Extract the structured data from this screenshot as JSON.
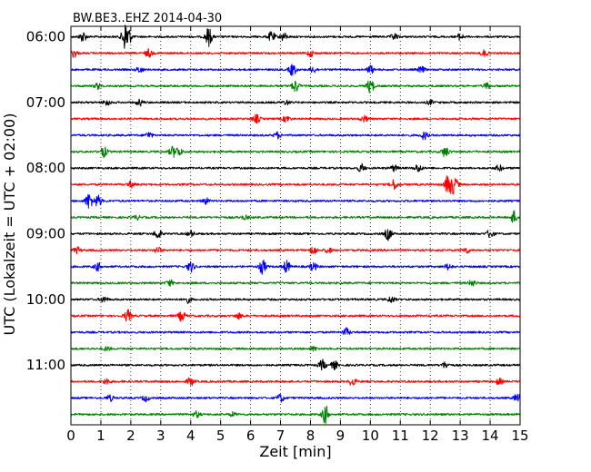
{
  "chart_data": {
    "type": "line",
    "title": "BW.BE3..EHZ 2014-04-30",
    "xlabel": "Zeit  [min]",
    "ylabel": "UTC (Lokalzeit = UTC + 02:00)",
    "xlim": [
      0,
      15
    ],
    "x_ticks": [
      "0",
      "1",
      "2",
      "3",
      "4",
      "5",
      "6",
      "7",
      "8",
      "9",
      "10",
      "11",
      "12",
      "13",
      "14",
      "15"
    ],
    "y_tick_labels": [
      "06:00",
      "07:00",
      "08:00",
      "09:00",
      "10:00",
      "11:00"
    ],
    "grid": "vertical dotted",
    "trace_colors": [
      "#000000",
      "#ff0000",
      "#0000ff",
      "#008000"
    ],
    "traces": [
      {
        "start": "06:00",
        "color": "#000000",
        "events": [
          [
            0.4,
            0.5
          ],
          [
            1.8,
            1.0
          ],
          [
            1.9,
            0.9
          ],
          [
            4.6,
            0.9
          ],
          [
            6.7,
            0.5
          ],
          [
            7.1,
            0.4
          ],
          [
            10.8,
            0.3
          ],
          [
            13.0,
            0.3
          ]
        ]
      },
      {
        "start": "06:15",
        "color": "#ff0000",
        "events": [
          [
            0.1,
            0.4
          ],
          [
            2.6,
            0.4
          ],
          [
            8.0,
            0.3
          ],
          [
            13.8,
            0.3
          ]
        ]
      },
      {
        "start": "06:30",
        "color": "#0000ff",
        "events": [
          [
            2.3,
            0.3
          ],
          [
            7.4,
            0.6
          ],
          [
            8.1,
            0.3
          ],
          [
            10.0,
            0.4
          ],
          [
            11.7,
            0.3
          ]
        ]
      },
      {
        "start": "06:45",
        "color": "#008000",
        "events": [
          [
            0.9,
            0.3
          ],
          [
            7.5,
            0.6
          ],
          [
            10.0,
            0.7
          ],
          [
            13.9,
            0.3
          ]
        ]
      },
      {
        "start": "07:00",
        "color": "#000000",
        "events": [
          [
            1.2,
            0.3
          ],
          [
            2.3,
            0.3
          ],
          [
            7.2,
            0.2
          ],
          [
            12.0,
            0.2
          ]
        ]
      },
      {
        "start": "07:15",
        "color": "#ff0000",
        "events": [
          [
            6.2,
            0.4
          ],
          [
            7.2,
            0.3
          ],
          [
            9.8,
            0.3
          ]
        ]
      },
      {
        "start": "07:30",
        "color": "#0000ff",
        "events": [
          [
            2.6,
            0.3
          ],
          [
            6.9,
            0.3
          ],
          [
            11.8,
            0.4
          ]
        ]
      },
      {
        "start": "07:45",
        "color": "#008000",
        "events": [
          [
            1.1,
            0.5
          ],
          [
            3.4,
            0.5
          ],
          [
            3.6,
            0.4
          ],
          [
            12.5,
            0.5
          ]
        ]
      },
      {
        "start": "08:00",
        "color": "#000000",
        "events": [
          [
            9.7,
            0.4
          ],
          [
            10.8,
            0.3
          ],
          [
            11.6,
            0.4
          ],
          [
            14.3,
            0.3
          ]
        ]
      },
      {
        "start": "08:15",
        "color": "#ff0000",
        "events": [
          [
            2.0,
            0.3
          ],
          [
            10.8,
            0.5
          ],
          [
            12.6,
            1.0
          ],
          [
            12.8,
            0.9
          ]
        ]
      },
      {
        "start": "08:30",
        "color": "#0000ff",
        "events": [
          [
            0.6,
            0.8
          ],
          [
            0.9,
            0.6
          ],
          [
            4.5,
            0.3
          ]
        ]
      },
      {
        "start": "08:45",
        "color": "#008000",
        "events": [
          [
            2.2,
            0.2
          ],
          [
            5.8,
            0.2
          ],
          [
            14.8,
            0.6
          ]
        ]
      },
      {
        "start": "09:00",
        "color": "#000000",
        "events": [
          [
            2.9,
            0.5
          ],
          [
            4.0,
            0.3
          ],
          [
            10.6,
            0.6
          ],
          [
            14.0,
            0.4
          ]
        ]
      },
      {
        "start": "09:15",
        "color": "#ff0000",
        "events": [
          [
            0.2,
            0.3
          ],
          [
            2.9,
            0.3
          ],
          [
            8.1,
            0.4
          ],
          [
            8.6,
            0.3
          ],
          [
            13.2,
            0.3
          ]
        ]
      },
      {
        "start": "09:30",
        "color": "#0000ff",
        "events": [
          [
            0.9,
            0.4
          ],
          [
            4.0,
            0.5
          ],
          [
            6.4,
            0.7
          ],
          [
            7.2,
            0.6
          ],
          [
            8.1,
            0.4
          ],
          [
            12.6,
            0.3
          ]
        ]
      },
      {
        "start": "09:45",
        "color": "#008000",
        "events": [
          [
            3.3,
            0.3
          ],
          [
            13.4,
            0.3
          ]
        ]
      },
      {
        "start": "10:00",
        "color": "#000000",
        "events": [
          [
            1.1,
            0.3
          ],
          [
            3.9,
            0.3
          ],
          [
            10.7,
            0.3
          ]
        ]
      },
      {
        "start": "10:15",
        "color": "#ff0000",
        "events": [
          [
            1.9,
            0.6
          ],
          [
            3.7,
            0.5
          ],
          [
            5.6,
            0.3
          ]
        ]
      },
      {
        "start": "10:30",
        "color": "#0000ff",
        "events": [
          [
            9.2,
            0.4
          ]
        ]
      },
      {
        "start": "10:45",
        "color": "#008000",
        "events": [
          [
            1.2,
            0.2
          ],
          [
            8.1,
            0.2
          ]
        ]
      },
      {
        "start": "11:00",
        "color": "#000000",
        "events": [
          [
            8.4,
            0.5
          ],
          [
            8.8,
            0.4
          ],
          [
            12.5,
            0.3
          ]
        ]
      },
      {
        "start": "11:15",
        "color": "#ff0000",
        "events": [
          [
            1.2,
            0.3
          ],
          [
            4.0,
            0.4
          ],
          [
            9.4,
            0.4
          ],
          [
            14.3,
            0.3
          ]
        ]
      },
      {
        "start": "11:30",
        "color": "#0000ff",
        "events": [
          [
            1.3,
            0.3
          ],
          [
            2.5,
            0.3
          ],
          [
            7.0,
            0.4
          ],
          [
            14.9,
            0.4
          ]
        ]
      },
      {
        "start": "11:45",
        "color": "#008000",
        "events": [
          [
            4.2,
            0.3
          ],
          [
            8.5,
            0.9
          ],
          [
            5.4,
            0.2
          ]
        ]
      }
    ]
  }
}
